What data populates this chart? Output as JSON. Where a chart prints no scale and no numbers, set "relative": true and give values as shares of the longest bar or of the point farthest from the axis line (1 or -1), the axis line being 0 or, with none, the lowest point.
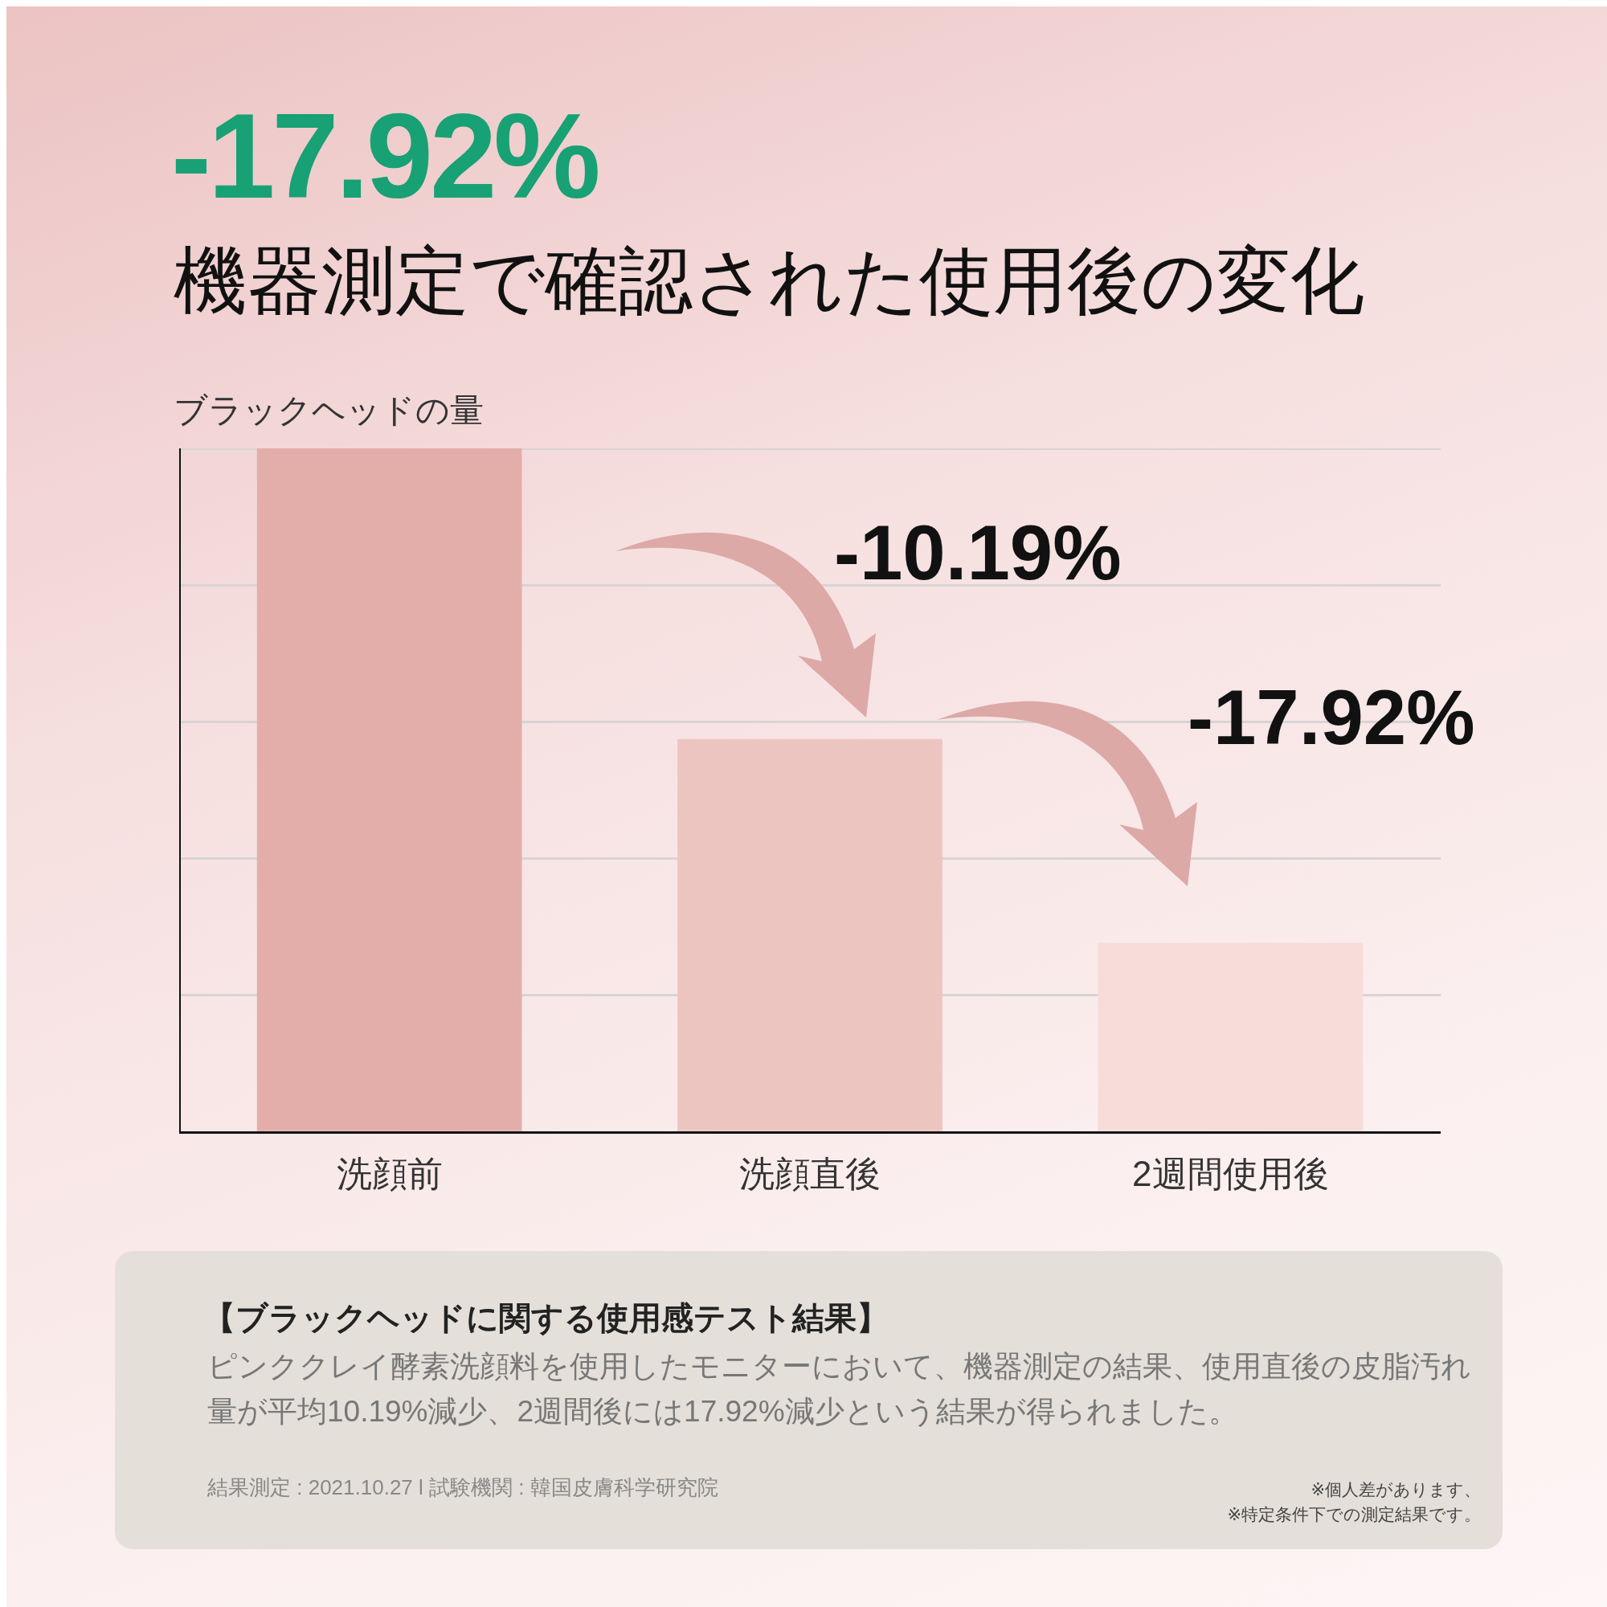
{
  "chart_data": {
    "type": "bar",
    "title": "-17.92%",
    "subtitle": "機器測定で確認された使用後の変化",
    "ylabel": "ブラックヘッドの量",
    "categories": [
      "洗顔前",
      "洗顔直後",
      "2週間使用後"
    ],
    "values": [
      1,
      0.575,
      0.277
    ],
    "colors": [
      "#e3aea9",
      "#edc5c0",
      "#f7dcd9"
    ],
    "relative": true,
    "grid": "y",
    "legend": false,
    "annotations": [
      "-10.19%",
      "-17.92%",
      "【ブラックヘッドに関する使用感テスト結果】",
      "ピンククレイ酵素洗顔料を使用したモニターにおいて、機器測定の結果、使用直後の皮脂汚れ量が平均10.19%減少、2週間後には17.92%減少という結果が得られました。",
      "結果測定 : 2021.10.27 l 試験機関 : 韓国皮膚科学研究院",
      "※個人差があります、",
      "※特定条件下での測定結果です。"
    ]
  }
}
